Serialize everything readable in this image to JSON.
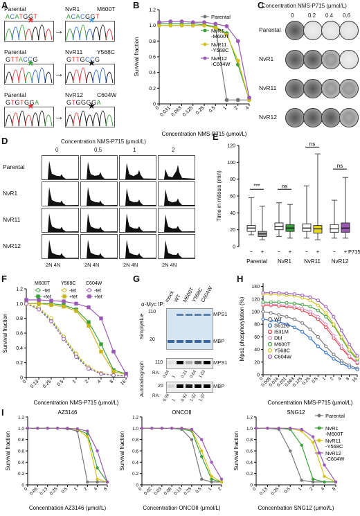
{
  "panelA": {
    "letter": "A",
    "rows": [
      {
        "left_label": "Parental",
        "right_label": "NvR1",
        "mut": "M600T",
        "left_seq": "ACATGGT",
        "right_seq": "ACACGGT",
        "left_star": "#e03030",
        "right_star": "#4aa0e0"
      },
      {
        "left_label": "Parental",
        "right_label": "NvR11",
        "mut": "Y568C",
        "left_seq": "GTTACCG",
        "right_seq": "GTTGCCG",
        "left_star": "#30a030",
        "right_star": "#111"
      },
      {
        "left_label": "Parental",
        "right_label": "NvR12",
        "mut": "C604W",
        "left_seq": "GTGTGGA",
        "right_seq": "GTGGGGA",
        "left_star": "#e03030",
        "right_star": "#111"
      }
    ],
    "arrow": "→"
  },
  "panelB": {
    "letter": "B",
    "chart_data": {
      "type": "line",
      "xlabel": "Concentration NMS-P715 (μmol/L)",
      "ylabel": "Survival fraction",
      "x_ticks": [
        "0",
        "0.031",
        "0.063",
        "0.125",
        "0.25",
        "0.5",
        "1",
        "2",
        "4"
      ],
      "y_ticks": [
        "0",
        "0.2",
        "0.4",
        "0.6",
        "0.8",
        "1.0",
        "1.2"
      ],
      "ylim": [
        0,
        1.2
      ],
      "series": [
        {
          "name": "Parental",
          "color": "#777777",
          "values": [
            1.0,
            1.0,
            1.0,
            1.0,
            1.0,
            0.98,
            0.05,
            0.05,
            0.05
          ]
        },
        {
          "name": "NvR1\n-M600T",
          "color": "#3aa13a",
          "values": [
            1.02,
            1.02,
            1.02,
            1.02,
            1.01,
            0.98,
            0.9,
            0.5,
            0.05
          ]
        },
        {
          "name": "NvR11\n-Y568C",
          "color": "#d4c21a",
          "values": [
            1.0,
            1.0,
            1.0,
            1.0,
            1.0,
            0.97,
            0.88,
            0.55,
            0.05
          ]
        },
        {
          "name": "NvR12\n-C604W",
          "color": "#9b59b6",
          "values": [
            1.04,
            1.05,
            1.05,
            1.04,
            1.04,
            1.02,
            0.99,
            0.8,
            0.08
          ]
        }
      ]
    }
  },
  "panelC": {
    "letter": "C",
    "title": "Concentration NMS-P715 (μmol/L)",
    "cols": [
      "0",
      "0.2",
      "0.4",
      "0.6"
    ],
    "rows": [
      "Parental",
      "NvR1",
      "NvR11",
      "NvR12"
    ],
    "density": [
      [
        "dense",
        "light",
        "light",
        "light"
      ],
      [
        "dense",
        "dense",
        "mid",
        "light"
      ],
      [
        "dense",
        "dense",
        "mid",
        "mid"
      ],
      [
        "dense",
        "dense",
        "dense",
        "mid"
      ]
    ]
  },
  "panelD": {
    "letter": "D",
    "title": "Concentration NMS-P715 (μmol/L)",
    "cols": [
      "0",
      "0.5",
      "1",
      "2"
    ],
    "rows": [
      "Parental",
      "NvR1",
      "NvR11",
      "NvR12"
    ],
    "xaxis": "2N  4N"
  },
  "panelE": {
    "letter": "E",
    "ylabel": "Time in mitosis (min)",
    "y_ticks": [
      "0",
      "20",
      "40",
      "60",
      "80",
      "100",
      "120"
    ],
    "groups": [
      "Parental",
      "NvR1",
      "NvR11",
      "NvR12"
    ],
    "signs": [
      "−",
      "+",
      "−",
      "+",
      "−",
      "+",
      "−",
      "+"
    ],
    "drug": "P715",
    "sig": [
      "***",
      "ns",
      "ns",
      "ns"
    ],
    "colors": [
      "#ffffff",
      "#aaaaaa",
      "#ffffff",
      "#3aa13a",
      "#ffffff",
      "#e8d81c",
      "#ffffff",
      "#9b59b6"
    ]
  },
  "panelF": {
    "letter": "F",
    "chart_data": {
      "type": "line",
      "xlabel": "Concentration NMS-P715 (μmol/L)",
      "ylabel": "Survival fraction",
      "x_ticks": [
        "0",
        "0.13",
        "0.25",
        "0.5",
        "1",
        "2",
        "4",
        "8",
        "16"
      ],
      "y_ticks": [
        "0",
        "0.2",
        "0.4",
        "0.6",
        "0.8",
        "1.0",
        "1.2"
      ],
      "legend_headers": [
        "M600T",
        "Y568C",
        "C604W"
      ],
      "legend_rows": [
        "-tet",
        "+tet"
      ],
      "series": [
        {
          "name": "M600T -tet",
          "color": "#3aa13a",
          "values": [
            1.0,
            0.93,
            0.78,
            0.55,
            0.3,
            0.12,
            0.05,
            0.03,
            0.02
          ]
        },
        {
          "name": "M600T +tet",
          "color": "#3aa13a",
          "values": [
            1.0,
            1.0,
            1.0,
            0.98,
            0.92,
            0.75,
            0.45,
            0.1,
            0.05
          ]
        },
        {
          "name": "Y568C -tet",
          "color": "#c9b51a",
          "values": [
            1.0,
            0.95,
            0.8,
            0.55,
            0.32,
            0.14,
            0.06,
            0.03,
            0.02
          ]
        },
        {
          "name": "Y568C +tet",
          "color": "#c9b51a",
          "values": [
            1.0,
            1.0,
            0.98,
            0.96,
            0.9,
            0.7,
            0.35,
            0.08,
            0.04
          ]
        },
        {
          "name": "C604W -tet",
          "color": "#9b59b6",
          "values": [
            1.0,
            0.92,
            0.76,
            0.52,
            0.28,
            0.12,
            0.05,
            0.03,
            0.02
          ]
        },
        {
          "name": "C604W +tet",
          "color": "#9b59b6",
          "values": [
            1.05,
            1.05,
            1.04,
            1.03,
            1.0,
            0.95,
            0.8,
            0.35,
            0.05
          ]
        }
      ]
    }
  },
  "panelG": {
    "letter": "G",
    "ip": "α-Myc IP:",
    "lanes": [
      "mock",
      "WT",
      "M600T",
      "Y568C",
      "C604W"
    ],
    "top_label": "SimplyBlue",
    "bottom_label": "Autoradiograph",
    "mw_top": [
      "110",
      "20"
    ],
    "mw_bottom1": "110",
    "mw_bottom2": "20",
    "band_mps1": "MPS1",
    "band_mbp": "MBP",
    "ra": "RA:",
    "ra1": [
      "0.04",
      "1",
      "0.21",
      "0.64",
      "1.03"
    ],
    "ra2": [
      "0.08",
      "1",
      "0.92",
      "1.02",
      "1.07"
    ]
  },
  "panelH": {
    "letter": "H",
    "chart_data": {
      "type": "line",
      "xlabel": "Concentration NMS-P715 (μmol/L)",
      "ylabel": "Mps1 phosphorylation (%)",
      "x_ticks": [
        "0",
        "0.008",
        "0.016",
        "0.031",
        "0.063",
        "0.125",
        "0.25",
        "0.5",
        "1",
        "2",
        "4",
        "8",
        "16"
      ],
      "y_ticks": [
        "0",
        "20",
        "40",
        "60",
        "80",
        "100",
        "120",
        "140"
      ],
      "series": [
        {
          "name": "WT",
          "color": "#777777",
          "values": [
            100,
            98,
            95,
            92,
            88,
            82,
            72,
            60,
            45,
            32,
            22,
            15,
            10
          ]
        },
        {
          "name": "S611G",
          "color": "#2a6cc9",
          "values": [
            88,
            86,
            84,
            80,
            75,
            68,
            58,
            45,
            35,
            25,
            18,
            12,
            8
          ]
        },
        {
          "name": "I531M",
          "color": "#e04040",
          "values": [
            110,
            110,
            109,
            108,
            106,
            102,
            96,
            88,
            75,
            58,
            42,
            28,
            18
          ]
        },
        {
          "name": "Dbl",
          "color": "#e090c0",
          "values": [
            112,
            112,
            111,
            110,
            108,
            105,
            100,
            92,
            80,
            62,
            45,
            30,
            20
          ]
        },
        {
          "name": "M600T",
          "color": "#3aa13a",
          "values": [
            115,
            115,
            115,
            114,
            113,
            111,
            108,
            102,
            92,
            78,
            58,
            38,
            24
          ]
        },
        {
          "name": "Y568C",
          "color": "#d4c21a",
          "values": [
            128,
            128,
            127,
            126,
            125,
            122,
            118,
            110,
            98,
            80,
            60,
            40,
            26
          ]
        },
        {
          "name": "C604W",
          "color": "#9b59b6",
          "values": [
            130,
            130,
            130,
            129,
            128,
            126,
            123,
            118,
            108,
            92,
            70,
            48,
            30
          ]
        }
      ]
    }
  },
  "panelI": {
    "letter": "I",
    "ylabel": "Survival fraction",
    "charts": [
      {
        "title": "AZ3146",
        "xlabel": "Concentration AZ3146 (μmol/L)",
        "x_ticks": [
          "0",
          "0.06",
          "0.13",
          "0.25",
          "0.5",
          "1",
          "2",
          "4",
          "8"
        ],
        "series": [
          [
            1.0,
            1.0,
            1.0,
            1.0,
            0.99,
            0.95,
            0.05,
            0.05,
            0.05
          ],
          [
            1.0,
            1.0,
            1.0,
            1.0,
            1.0,
            0.98,
            0.9,
            0.3,
            0.05
          ],
          [
            1.0,
            1.0,
            1.0,
            1.0,
            1.0,
            0.98,
            0.85,
            0.1,
            0.05
          ],
          [
            1.0,
            1.0,
            1.0,
            1.0,
            1.0,
            0.99,
            0.95,
            0.6,
            0.05
          ]
        ]
      },
      {
        "title": "ONCOII",
        "xlabel": "Concentration ONCOII (μmol/L)",
        "x_ticks": [
          "0",
          "0.02",
          "0.03",
          "0.06",
          "0.13",
          "0.25",
          "0.5",
          "1",
          "2"
        ],
        "series": [
          [
            1.0,
            1.0,
            1.0,
            1.0,
            0.98,
            0.8,
            0.1,
            0.05,
            0.05
          ],
          [
            1.0,
            1.0,
            1.0,
            1.0,
            0.99,
            0.95,
            0.5,
            0.1,
            0.05
          ],
          [
            1.0,
            1.0,
            1.0,
            1.0,
            1.0,
            0.97,
            0.6,
            0.15,
            0.05
          ],
          [
            1.0,
            1.0,
            1.0,
            1.0,
            1.0,
            0.98,
            0.8,
            0.4,
            0.1
          ]
        ]
      },
      {
        "title": "SNG12",
        "xlabel": "Concentration SNG12 (μmol/L)",
        "x_ticks": [
          "0",
          "0.13",
          "0.25",
          "0.5",
          "1",
          "2",
          "4",
          "8"
        ],
        "series": [
          [
            1.0,
            1.0,
            0.98,
            0.6,
            0.08,
            0.05,
            0.05,
            0.05
          ],
          [
            1.0,
            1.0,
            1.0,
            0.98,
            0.7,
            0.1,
            0.05,
            0.05
          ],
          [
            1.0,
            1.0,
            1.0,
            1.0,
            0.95,
            0.75,
            0.15,
            0.05
          ],
          [
            1.0,
            1.0,
            1.0,
            1.0,
            0.98,
            0.85,
            0.35,
            0.05
          ]
        ]
      }
    ],
    "legend": [
      {
        "name": "Parental",
        "color": "#777777"
      },
      {
        "name": "NvR1\n-M600T",
        "color": "#3aa13a"
      },
      {
        "name": "NvR11\n-Y568C",
        "color": "#d4c21a"
      },
      {
        "name": "NvR12\n-C604W",
        "color": "#9b59b6"
      }
    ]
  }
}
